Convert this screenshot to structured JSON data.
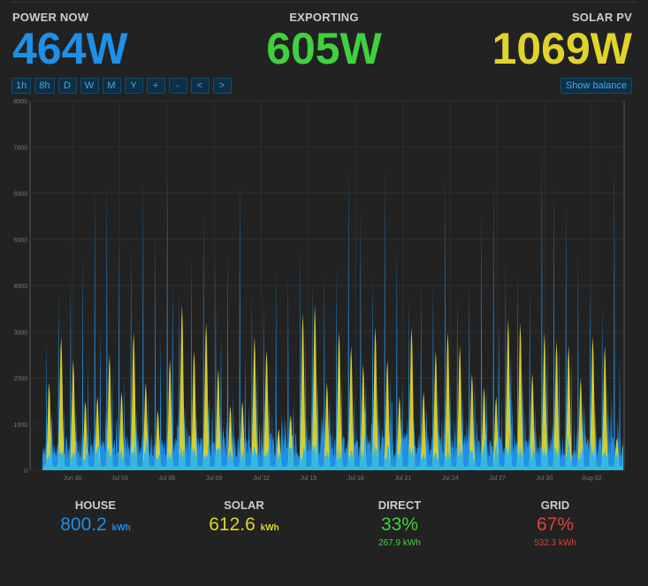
{
  "stats": {
    "power_now": {
      "label": "POWER NOW",
      "value": "464W"
    },
    "exporting": {
      "label": "EXPORTING",
      "value": "605W"
    },
    "solar_pv": {
      "label": "SOLAR PV",
      "value": "1069W"
    }
  },
  "toolbar": {
    "buttons": [
      "1h",
      "8h",
      "D",
      "W",
      "M",
      "Y",
      "+",
      "-",
      "<",
      ">"
    ],
    "show_balance": "Show balance"
  },
  "colors": {
    "house": "#1e90e8",
    "solar": "#e0d42a",
    "direct": "#3fd13f",
    "grid": "#e0403c",
    "overlap": "#35b8df"
  },
  "chart_data": {
    "type": "area",
    "series": [
      {
        "name": "house",
        "peaks_w": [
          2800,
          3900,
          4300,
          4700,
          6200,
          6300,
          5200,
          4900,
          6400,
          5300,
          6600,
          3900,
          4700,
          5700,
          4700,
          4800,
          6600,
          3900,
          3800,
          4400,
          4300,
          4900,
          4100,
          4300,
          4500,
          6700,
          5800,
          4300,
          6700,
          4900,
          3800,
          4100,
          4100,
          6500,
          3800,
          4100,
          5700,
          6400,
          4600,
          4400,
          4000,
          7100,
          6300,
          5900,
          4800,
          4300,
          3700,
          6800
        ]
      },
      {
        "name": "solar",
        "peaks_w": [
          1900,
          2900,
          2400,
          1500,
          1600,
          2500,
          1700,
          3000,
          1900,
          1300,
          2400,
          3600,
          2600,
          3200,
          2200,
          1400,
          1500,
          2900,
          2600,
          900,
          1200,
          3400,
          3600,
          1900,
          3000,
          2700,
          2300,
          3100,
          2400,
          1600,
          3100,
          1700,
          2600,
          3000,
          2700,
          2100,
          1800,
          1600,
          3300,
          3200,
          2100,
          3000,
          2800,
          2700,
          2000,
          2900,
          2700,
          700
        ]
      }
    ],
    "xlabel": "",
    "ylabel": "",
    "ylim": [
      0,
      8000
    ],
    "yticks": [
      "0",
      "1000",
      "2000",
      "3000",
      "4000",
      "5000",
      "6000",
      "7000",
      "8000"
    ],
    "xticks": [
      "Jun 30",
      "Jul 03",
      "Jul 06",
      "Jul 09",
      "Jul 12",
      "Jul 15",
      "Jul 18",
      "Jul 21",
      "Jul 24",
      "Jul 27",
      "Jul 30",
      "Aug 02"
    ],
    "grid": true,
    "legend": "none"
  },
  "summary": {
    "house": {
      "label": "HOUSE",
      "value": "800.2",
      "unit": "kWh"
    },
    "solar": {
      "label": "SOLAR",
      "value": "612.6",
      "unit": "kWh"
    },
    "direct": {
      "label": "DIRECT",
      "value": "33%",
      "sub": "267.9 kWh"
    },
    "grid": {
      "label": "GRID",
      "value": "67%",
      "sub": "532.3 kWh"
    }
  }
}
